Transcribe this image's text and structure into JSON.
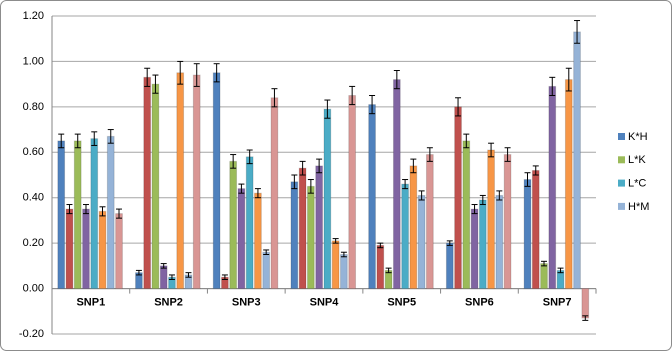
{
  "chart_data": {
    "type": "bar",
    "categories": [
      "SNP1",
      "SNP2",
      "SNP3",
      "SNP4",
      "SNP5",
      "SNP6",
      "SNP7"
    ],
    "series": [
      {
        "name": "K*H",
        "color": "#4f81bd",
        "values": [
          0.65,
          0.07,
          0.95,
          0.47,
          0.81,
          0.2,
          0.48
        ],
        "errors": [
          0.03,
          0.01,
          0.04,
          0.03,
          0.04,
          0.01,
          0.03
        ]
      },
      {
        "name": null,
        "color": "#c0504d",
        "values": [
          0.35,
          0.93,
          0.05,
          0.53,
          0.19,
          0.8,
          0.52
        ],
        "errors": [
          0.02,
          0.04,
          0.01,
          0.03,
          0.01,
          0.04,
          0.02
        ]
      },
      {
        "name": "L*K",
        "color": "#9bbb59",
        "values": [
          0.65,
          0.9,
          0.56,
          0.45,
          0.08,
          0.65,
          0.11
        ],
        "errors": [
          0.03,
          0.04,
          0.03,
          0.03,
          0.01,
          0.03,
          0.01
        ]
      },
      {
        "name": null,
        "color": "#8064a2",
        "values": [
          0.35,
          0.1,
          0.44,
          0.54,
          0.92,
          0.35,
          0.89
        ],
        "errors": [
          0.02,
          0.01,
          0.02,
          0.03,
          0.04,
          0.02,
          0.04
        ]
      },
      {
        "name": "L*C",
        "color": "#4bacc6",
        "values": [
          0.66,
          0.05,
          0.58,
          0.79,
          0.46,
          0.39,
          0.08
        ],
        "errors": [
          0.03,
          0.01,
          0.03,
          0.04,
          0.02,
          0.02,
          0.01
        ]
      },
      {
        "name": null,
        "color": "#f79646",
        "values": [
          0.34,
          0.95,
          0.42,
          0.21,
          0.54,
          0.61,
          0.92
        ],
        "errors": [
          0.02,
          0.05,
          0.02,
          0.01,
          0.03,
          0.03,
          0.05
        ]
      },
      {
        "name": "H*M",
        "color": "#95b3d7",
        "values": [
          0.67,
          0.06,
          0.16,
          0.15,
          0.41,
          0.41,
          1.13
        ],
        "errors": [
          0.03,
          0.01,
          0.01,
          0.01,
          0.02,
          0.02,
          0.05
        ]
      },
      {
        "name": null,
        "color": "#d99694",
        "values": [
          0.33,
          0.94,
          0.84,
          0.85,
          0.59,
          0.59,
          -0.13
        ],
        "errors": [
          0.02,
          0.05,
          0.04,
          0.04,
          0.03,
          0.03,
          0.01
        ]
      }
    ],
    "ylim": [
      -0.2,
      1.2
    ],
    "yticks": [
      {
        "value": -0.2,
        "label": "-0.20"
      },
      {
        "value": 0,
        "label": "0.00"
      },
      {
        "value": 0.2,
        "label": "0.20"
      },
      {
        "value": 0.4,
        "label": "0.40"
      },
      {
        "value": 0.6,
        "label": "0.60"
      },
      {
        "value": 0.8,
        "label": "0.80"
      },
      {
        "value": 1,
        "label": "1.00"
      },
      {
        "value": 1.2,
        "label": "1.20"
      }
    ],
    "grid": true,
    "legend": "right"
  }
}
